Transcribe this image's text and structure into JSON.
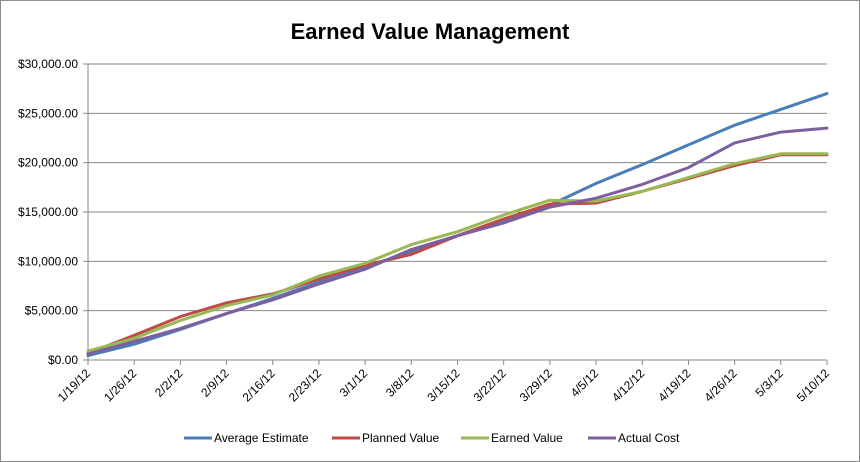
{
  "chart_data": {
    "type": "line",
    "title": "Earned Value Management",
    "xlabel": "",
    "ylabel": "",
    "categories": [
      "1/19/12",
      "1/26/12",
      "2/2/12",
      "2/9/12",
      "2/16/12",
      "2/23/12",
      "3/1/12",
      "3/8/12",
      "3/15/12",
      "3/22/12",
      "3/29/12",
      "4/5/12",
      "4/12/12",
      "4/19/12",
      "4/26/12",
      "5/3/12",
      "5/10/12"
    ],
    "ylim": [
      0,
      30000
    ],
    "ytick_labels": [
      "$0.00",
      "$5,000.00",
      "$10,000.00",
      "$15,000.00",
      "$20,000.00",
      "$25,000.00",
      "$30,000.00"
    ],
    "grid": "horizontal",
    "legend": "bottom",
    "series": [
      {
        "name": "Average Estimate",
        "color": "#4a7ebb",
        "values": [
          450,
          1600,
          3100,
          4700,
          6250,
          7900,
          9400,
          11000,
          12600,
          14100,
          15700,
          17900,
          19800,
          21800,
          23800,
          25400,
          27000
        ]
      },
      {
        "name": "Planned Value",
        "color": "#be4b48",
        "values": [
          700,
          2500,
          4400,
          5800,
          6700,
          8200,
          9600,
          10700,
          12600,
          14300,
          15800,
          15900,
          17100,
          18400,
          19700,
          20800,
          20800
        ]
      },
      {
        "name": "Earned Value",
        "color": "#98b954",
        "values": [
          900,
          2200,
          4000,
          5500,
          6600,
          8500,
          9800,
          11700,
          13000,
          14700,
          16200,
          16100,
          17100,
          18500,
          19900,
          20900,
          20900
        ]
      },
      {
        "name": "Actual Cost",
        "color": "#7d5fa0",
        "values": [
          600,
          1900,
          3200,
          4700,
          6100,
          7700,
          9200,
          11200,
          12600,
          13900,
          15500,
          16400,
          17800,
          19500,
          22000,
          23100,
          23500
        ]
      }
    ]
  }
}
